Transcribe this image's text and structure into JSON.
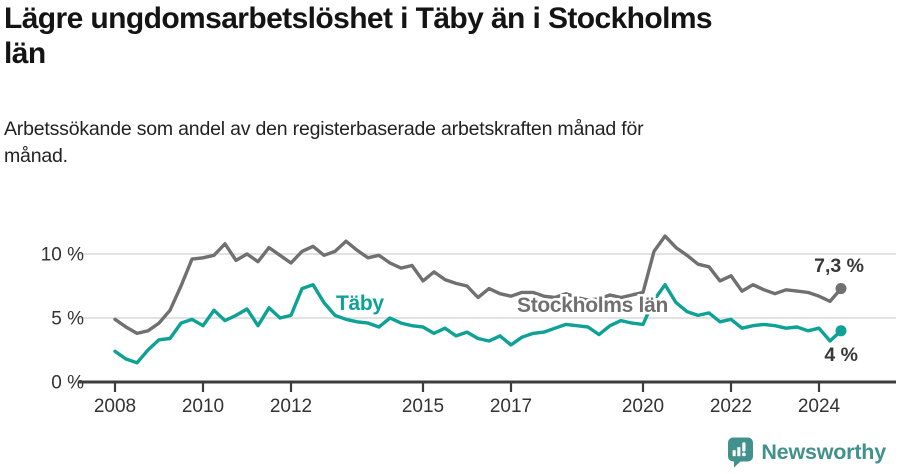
{
  "title": {
    "line1": "Lägre ungdomsarbetslöshet i Täby än i Stockholms",
    "line2": "län"
  },
  "subtitle": {
    "line1": "Arbetssökande som andel av den registerbaserade arbetskraften månad för",
    "line2": "månad."
  },
  "colors": {
    "taby_line": "#0da295",
    "stockholm_line": "#707070",
    "axis": "#3d3d3d",
    "grid": "#d9d9d9",
    "tick_label": "#333333",
    "end_label": "#383838",
    "title_text": "#141414",
    "logo": "#43918d",
    "background": "#ffffff"
  },
  "chart_data": {
    "type": "line",
    "title": "Lägre ungdomsarbetslöshet i Täby än i Stockholms län",
    "subtitle": "Arbetssökande som andel av den registerbaserade arbetskraften månad för månad.",
    "xlabel": "",
    "ylabel": "",
    "ylim": [
      0,
      12
    ],
    "x_range": [
      2008,
      2024.5
    ],
    "grid": "horizontal",
    "legend_position": "inline-labels",
    "x_start": 2008,
    "x_step": 0.25,
    "y_ticks": [
      {
        "value": 0,
        "label": "0 %"
      },
      {
        "value": 5,
        "label": "5 %"
      },
      {
        "value": 10,
        "label": "10 %"
      }
    ],
    "x_ticks": [
      {
        "year": 2008,
        "label": "2008"
      },
      {
        "year": 2010,
        "label": "2010"
      },
      {
        "year": 2012,
        "label": "2012"
      },
      {
        "year": 2015,
        "label": "2015"
      },
      {
        "year": 2017,
        "label": "2017"
      },
      {
        "year": 2020,
        "label": "2020"
      },
      {
        "year": 2022,
        "label": "2022"
      },
      {
        "year": 2024,
        "label": "2024"
      }
    ],
    "series": [
      {
        "name": "Stockholms län",
        "color": "#707070",
        "values": [
          4.9,
          4.3,
          3.8,
          4.0,
          4.6,
          5.6,
          7.5,
          9.6,
          9.7,
          9.9,
          10.8,
          9.5,
          10.0,
          9.4,
          10.5,
          9.9,
          9.3,
          10.2,
          10.6,
          9.9,
          10.2,
          11.0,
          10.3,
          9.7,
          9.9,
          9.3,
          8.9,
          9.1,
          7.9,
          8.6,
          8.0,
          7.7,
          7.5,
          6.6,
          7.3,
          6.9,
          6.7,
          7.0,
          7.0,
          6.7,
          6.6,
          6.9,
          6.6,
          6.4,
          6.5,
          6.8,
          6.6,
          6.8,
          7.0,
          10.2,
          11.4,
          10.5,
          9.9,
          9.2,
          9.0,
          7.9,
          8.3,
          7.1,
          7.6,
          7.2,
          6.9,
          7.2,
          7.1,
          7.0,
          6.7,
          6.3
        ],
        "end_point": {
          "x": 2024.5,
          "value": 7.3
        },
        "end_label": "7,3 %"
      },
      {
        "name": "Täby",
        "color": "#0da295",
        "values": [
          2.4,
          1.8,
          1.5,
          2.5,
          3.3,
          3.4,
          4.6,
          4.9,
          4.4,
          5.6,
          4.8,
          5.2,
          5.7,
          4.4,
          5.8,
          5.0,
          5.2,
          7.3,
          7.6,
          6.2,
          5.2,
          4.9,
          4.7,
          4.6,
          4.3,
          5.0,
          4.6,
          4.4,
          4.3,
          3.8,
          4.2,
          3.6,
          3.9,
          3.4,
          3.2,
          3.6,
          2.9,
          3.5,
          3.8,
          3.9,
          4.2,
          4.5,
          4.4,
          4.3,
          3.7,
          4.4,
          4.8,
          4.6,
          4.5,
          6.4,
          7.6,
          6.2,
          5.5,
          5.2,
          5.4,
          4.7,
          4.9,
          4.2,
          4.4,
          4.5,
          4.4,
          4.2,
          4.3,
          4.0,
          4.2,
          3.2
        ],
        "end_point": {
          "x": 2024.5,
          "value": 4.0
        },
        "end_label": "4 %"
      }
    ]
  },
  "footer": {
    "brand": "Newsworthy"
  }
}
